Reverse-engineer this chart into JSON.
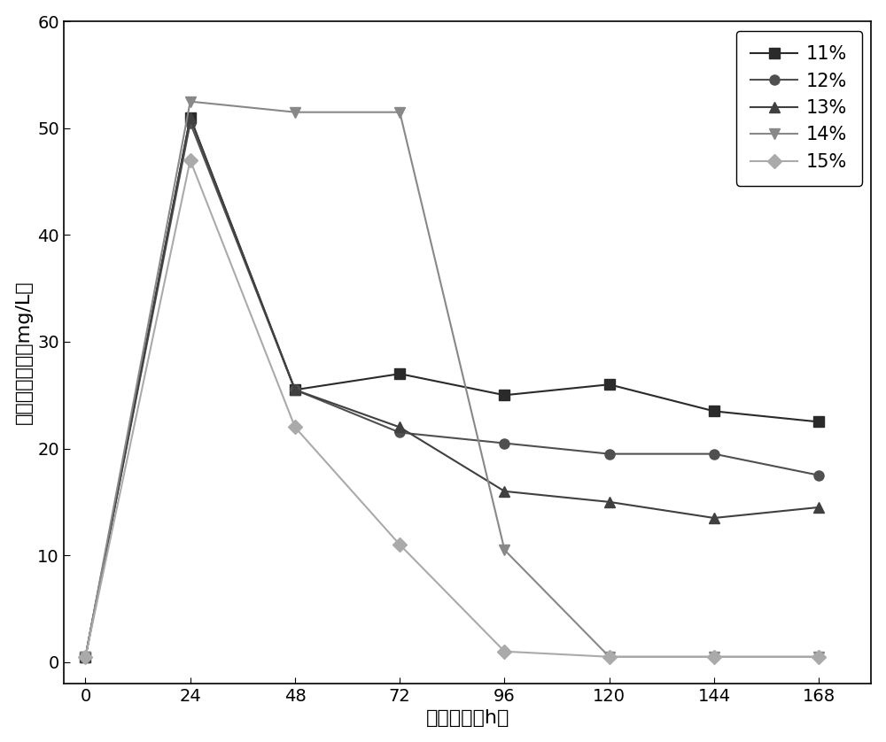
{
  "x": [
    0,
    24,
    48,
    72,
    96,
    120,
    144,
    168
  ],
  "series_order": [
    "11%",
    "12%",
    "13%",
    "14%",
    "15%"
  ],
  "series": {
    "11%": {
      "values": [
        0.5,
        51.0,
        25.5,
        27.0,
        25.0,
        26.0,
        23.5,
        22.5
      ],
      "color": "#2a2a2a",
      "marker": "s",
      "markersize": 8,
      "label": "11%"
    },
    "12%": {
      "values": [
        0.5,
        50.5,
        25.5,
        21.5,
        20.5,
        19.5,
        19.5,
        17.5
      ],
      "color": "#505050",
      "marker": "o",
      "markersize": 8,
      "label": "12%"
    },
    "13%": {
      "values": [
        0.5,
        51.0,
        25.5,
        22.0,
        16.0,
        15.0,
        13.5,
        14.5
      ],
      "color": "#404040",
      "marker": "^",
      "markersize": 8,
      "label": "13%"
    },
    "14%": {
      "values": [
        0.5,
        52.5,
        51.5,
        51.5,
        10.5,
        0.5,
        0.5,
        0.5
      ],
      "color": "#888888",
      "marker": "v",
      "markersize": 8,
      "label": "14%"
    },
    "15%": {
      "values": [
        0.5,
        47.0,
        22.0,
        11.0,
        1.0,
        0.5,
        0.5,
        0.5
      ],
      "color": "#aaaaaa",
      "marker": "D",
      "markersize": 8,
      "label": "15%"
    }
  },
  "xlabel": "反应时间（h）",
  "ylabel": "亚硫酸盐浓度（mg/L）",
  "xlim": [
    -5,
    180
  ],
  "ylim": [
    -2,
    60
  ],
  "xticks": [
    0,
    24,
    48,
    72,
    96,
    120,
    144,
    168
  ],
  "yticks": [
    0,
    10,
    20,
    30,
    40,
    50,
    60
  ],
  "linewidth": 1.5,
  "legend_loc": "upper right",
  "legend_fontsize": 15,
  "axis_fontsize": 16,
  "tick_fontsize": 14,
  "background_color": "#ffffff"
}
